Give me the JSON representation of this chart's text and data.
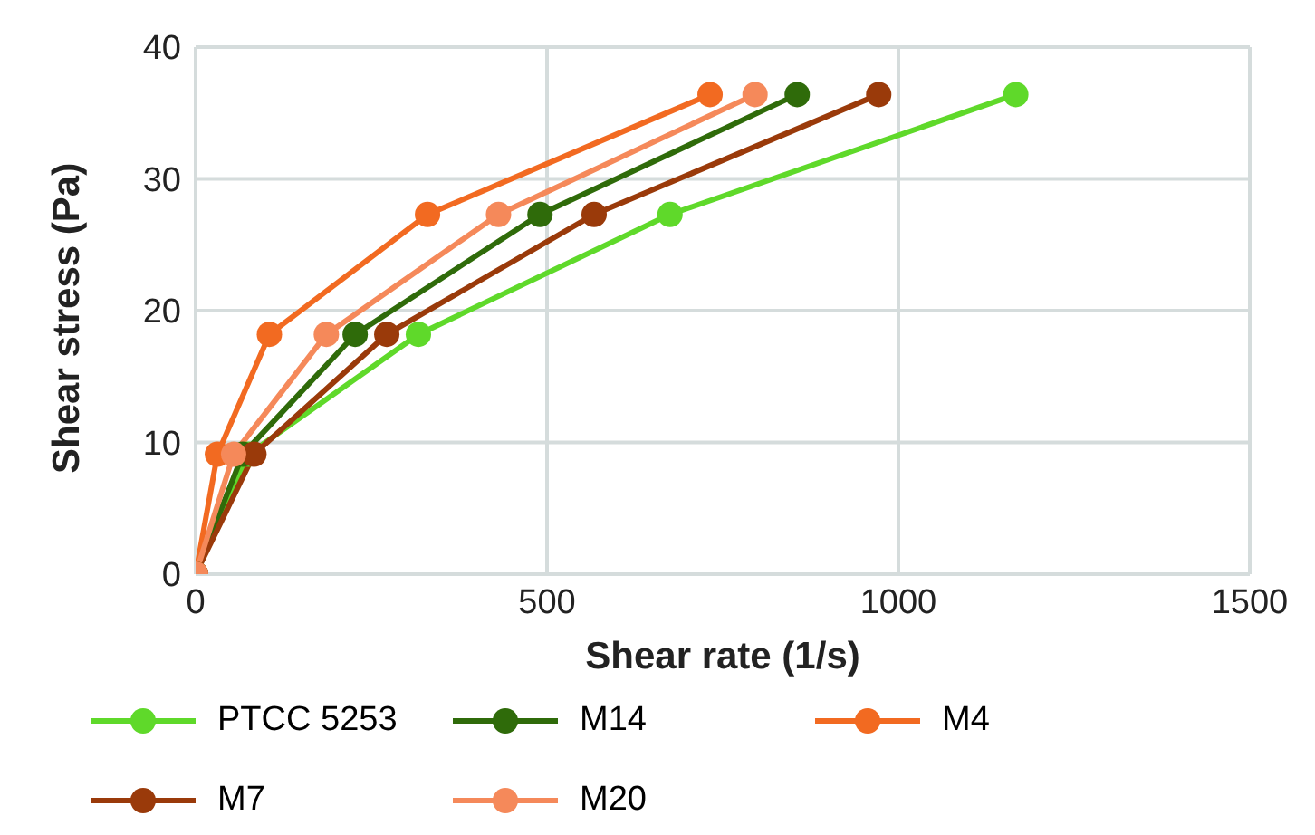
{
  "chart_data": {
    "type": "line",
    "xlabel": "Shear rate (1/s)",
    "ylabel": "Shear stress (Pa)",
    "xlim": [
      0,
      1500
    ],
    "xticks": [
      0,
      500,
      1000,
      1500
    ],
    "ylim": [
      0,
      40
    ],
    "yticks": [
      0,
      10,
      20,
      30,
      40
    ],
    "grid": true,
    "legend": "bottom",
    "marker": "circle",
    "line_style": "solid",
    "series": [
      {
        "name": "PTCC 5253",
        "color": "#5fd92a",
        "x": [
          0,
          75,
          317,
          675,
          1167
        ],
        "values": [
          0,
          9.1,
          18.2,
          27.3,
          36.4
        ]
      },
      {
        "name": "M14",
        "color": "#2f6b0a",
        "x": [
          0,
          67,
          227,
          490,
          856
        ],
        "values": [
          0,
          9.1,
          18.2,
          27.3,
          36.4
        ]
      },
      {
        "name": "M4",
        "color": "#f26a21",
        "x": [
          0,
          31,
          105,
          330,
          732
        ],
        "values": [
          0,
          9.1,
          18.2,
          27.3,
          36.4
        ]
      },
      {
        "name": "M7",
        "color": "#9a3a0a",
        "x": [
          0,
          83,
          272,
          567,
          972
        ],
        "values": [
          0,
          9.1,
          18.2,
          27.3,
          36.4
        ]
      },
      {
        "name": "M20",
        "color": "#f5895a",
        "x": [
          0,
          54,
          186,
          431,
          796
        ],
        "values": [
          0,
          9.1,
          18.2,
          27.3,
          36.4
        ]
      }
    ]
  }
}
